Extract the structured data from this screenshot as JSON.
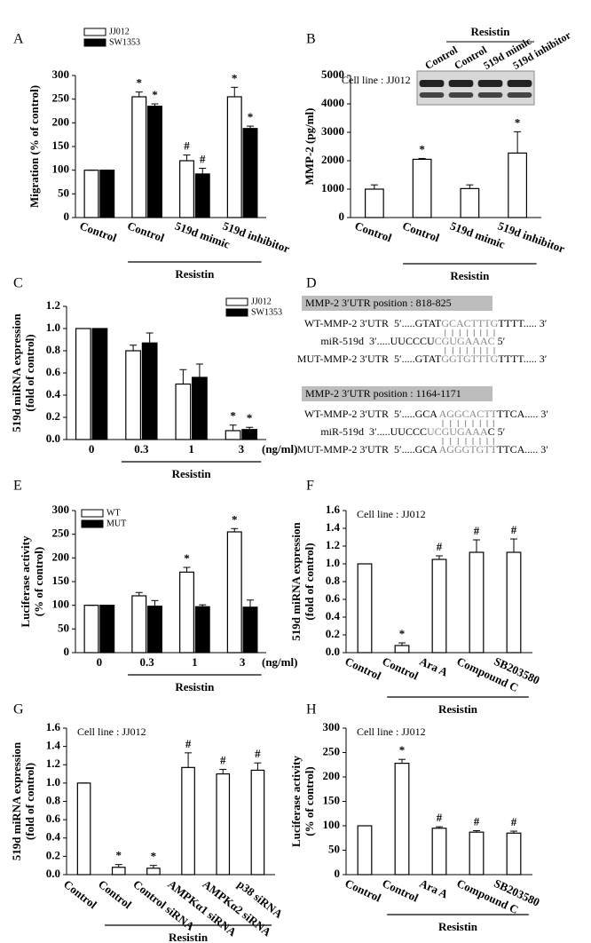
{
  "chart_data": [
    {
      "type": "bar",
      "panel_label": "A",
      "ylabel": [
        "Migration (% of control)"
      ],
      "categories": [
        "Control",
        "Control",
        "519d mimic",
        "519d inhibitor"
      ],
      "group_label": "Resistin",
      "series": [
        {
          "name": "JJ012",
          "color": "#ffffff",
          "values": [
            100,
            255,
            120,
            255
          ],
          "errors": [
            0,
            10,
            12,
            20
          ],
          "markers": [
            null,
            "*",
            "#",
            "*"
          ]
        },
        {
          "name": "SW1353",
          "color": "#000000",
          "values": [
            100,
            235,
            92,
            188
          ],
          "errors": [
            0,
            5,
            12,
            5
          ],
          "markers": [
            null,
            "*",
            "#",
            "*"
          ]
        }
      ],
      "ylim": [
        0,
        300
      ],
      "yticks": [
        0,
        50,
        100,
        150,
        200,
        250,
        300
      ],
      "legend": "upper left"
    },
    {
      "type": "bar",
      "panel_label": "B",
      "ylabel": [
        "MMP-2 (pg/ml)"
      ],
      "note": "Cell line : JJ012",
      "categories": [
        "Control",
        "Control",
        "519d mimic",
        "519d inhibitor"
      ],
      "group_label": "Resistin",
      "series": [
        {
          "color": "#ffffff",
          "values": [
            1000,
            2050,
            1020,
            2270
          ],
          "errors": [
            150,
            30,
            130,
            750
          ],
          "markers": [
            null,
            "*",
            null,
            "*"
          ]
        }
      ],
      "ylim": [
        0,
        5000
      ],
      "yticks": [
        0,
        1000,
        2000,
        3000,
        4000,
        5000
      ],
      "blot": {
        "lanes": [
          "Control",
          "Control",
          "519d mimic",
          "519d inhibitor"
        ],
        "group_label": "Resistin"
      }
    },
    {
      "type": "bar",
      "panel_label": "C",
      "ylabel": [
        "519d miRNA expression",
        "(fold of control)"
      ],
      "categories": [
        "0",
        "0.3",
        "1",
        "3"
      ],
      "x_unit": "(ng/ml)",
      "group_label": "Resistin",
      "series": [
        {
          "name": "JJ012",
          "color": "#ffffff",
          "values": [
            1.0,
            0.8,
            0.5,
            0.08
          ],
          "errors": [
            0,
            0.05,
            0.13,
            0.05
          ],
          "markers": [
            null,
            null,
            null,
            "*"
          ]
        },
        {
          "name": "SW1353",
          "color": "#000000",
          "values": [
            1.0,
            0.87,
            0.56,
            0.09
          ],
          "errors": [
            0,
            0.09,
            0.12,
            0.02
          ],
          "markers": [
            null,
            null,
            null,
            "*"
          ]
        }
      ],
      "ylim": [
        0,
        1.2
      ],
      "yticks": [
        {
          "value": 0,
          "label": "0.0"
        },
        0.2,
        0.4,
        0.6,
        0.8,
        {
          "value": 1,
          "label": "1.0"
        },
        1.2
      ],
      "legend": "upper right"
    },
    {
      "type": "bar",
      "panel_label": "E",
      "ylabel": [
        "Luciferase activity",
        "(% of control)"
      ],
      "categories": [
        "0",
        "0.3",
        "1",
        "3"
      ],
      "x_unit": "(ng/ml)",
      "group_label": "Resistin",
      "series": [
        {
          "name": "WT",
          "color": "#ffffff",
          "values": [
            100,
            120,
            170,
            255
          ],
          "errors": [
            0,
            7,
            10,
            7
          ],
          "markers": [
            null,
            null,
            "*",
            "*"
          ]
        },
        {
          "name": "MUT",
          "color": "#000000",
          "values": [
            100,
            98,
            97,
            96
          ],
          "errors": [
            0,
            12,
            4,
            15
          ],
          "markers": [
            null,
            null,
            null,
            null
          ]
        }
      ],
      "ylim": [
        0,
        300
      ],
      "yticks": [
        0,
        50,
        100,
        150,
        200,
        250,
        300
      ],
      "legend": "upper left"
    },
    {
      "type": "bar",
      "panel_label": "F",
      "ylabel": [
        "519d miRNA expression",
        "(fold of control)"
      ],
      "note": "Cell line : JJ012",
      "categories": [
        "Control",
        "Control",
        "Ara A",
        "Compound C",
        "SB203580"
      ],
      "group_label": "Resistin",
      "series": [
        {
          "color": "#ffffff",
          "values": [
            1.0,
            0.08,
            1.05,
            1.13,
            1.13
          ],
          "errors": [
            0,
            0.03,
            0.04,
            0.14,
            0.15
          ],
          "markers": [
            null,
            "*",
            "#",
            "#",
            "#"
          ]
        }
      ],
      "ylim": [
        0,
        1.6
      ],
      "yticks": [
        {
          "value": 0,
          "label": "0.0"
        },
        0.2,
        0.4,
        0.6,
        0.8,
        {
          "value": 1,
          "label": "1.0"
        },
        1.2,
        1.4,
        1.6
      ]
    },
    {
      "type": "bar",
      "panel_label": "G",
      "ylabel": [
        "519d miRNA expression",
        "(fold of control)"
      ],
      "note": "Cell line : JJ012",
      "categories": [
        "Control",
        "Control",
        "Control siRNA",
        "AMPKα1 siRNA",
        "AMPKα2 siRNA",
        "p38 siRNA"
      ],
      "group_label": "Resistin",
      "series": [
        {
          "color": "#ffffff",
          "values": [
            1.0,
            0.08,
            0.07,
            1.17,
            1.1,
            1.14
          ],
          "errors": [
            0,
            0.03,
            0.03,
            0.16,
            0.05,
            0.08
          ],
          "markers": [
            null,
            "*",
            "*",
            "#",
            "#",
            "#"
          ]
        }
      ],
      "ylim": [
        0,
        1.6
      ],
      "yticks": [
        {
          "value": 0,
          "label": "0.0"
        },
        0.2,
        0.4,
        0.6,
        0.8,
        {
          "value": 1,
          "label": "1.0"
        },
        1.2,
        1.4,
        1.6
      ]
    },
    {
      "type": "bar",
      "panel_label": "H",
      "ylabel": [
        "Luciferase activity",
        "(% of control)"
      ],
      "note": "Cell line : JJ012",
      "categories": [
        "Control",
        "Control",
        "Ara A",
        "Compound C",
        "SB203580"
      ],
      "group_label": "Resistin",
      "series": [
        {
          "color": "#ffffff",
          "values": [
            100,
            228,
            95,
            87,
            85
          ],
          "errors": [
            0,
            8,
            3,
            3,
            4
          ],
          "markers": [
            null,
            "*",
            "#",
            "#",
            "#"
          ]
        }
      ],
      "ylim": [
        0,
        300
      ],
      "yticks": [
        0,
        50,
        100,
        150,
        200,
        250,
        300
      ]
    }
  ],
  "panel_d": {
    "panel_label": "D",
    "blocks": [
      {
        "header": "MMP-2  3′UTR position : 818-825",
        "rows": [
          {
            "label": "WT-MMP-2 3′UTR",
            "seq": [
              "5′.....GTAT",
              "GCACTTTG",
              "TTTT..... 3′"
            ]
          },
          {
            "label": "miR-519d",
            "seq": [
              "3′.....UUCCCU",
              "CGUGAAAC",
              " 5′"
            ]
          },
          {
            "label": "MUT-MMP-2 3′UTR",
            "seq": [
              "5′.....GTAT",
              "GGTGTTTG",
              "TTTT..... 3′"
            ]
          }
        ]
      },
      {
        "header": "MMP-2 3′UTR position : 1164-1171",
        "rows": [
          {
            "label": "WT-MMP-2 3′UTR",
            "seq": [
              "5′.....GCA ",
              "AGGCACTT",
              "TTCA..... 3′"
            ]
          },
          {
            "label": "miR-519d",
            "seq": [
              "3′.....UUCCC",
              "UCGUGAAA",
              "C 5′"
            ]
          },
          {
            "label": "MUT-MMP-2 3′UTR",
            "seq": [
              "5′.....GCA ",
              "AGGGTGTT",
              "TTCA..... 3′"
            ]
          }
        ]
      }
    ]
  }
}
